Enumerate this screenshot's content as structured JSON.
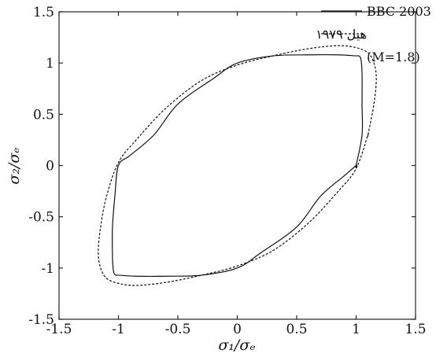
{
  "chart_data": {
    "type": "line",
    "title": "",
    "xlabel": "σ₁/σₑ",
    "ylabel": "σ₂/σₑ",
    "xlim": [
      -1.5,
      1.5
    ],
    "ylim": [
      -1.5,
      1.5
    ],
    "xticks": [
      "-1.5",
      "-1",
      "-0.5",
      "0",
      "0.5",
      "1",
      "1.5"
    ],
    "yticks": [
      "-1.5",
      "-1",
      "-0.5",
      "0",
      "0.5",
      "1",
      "1.5"
    ],
    "grid": false,
    "legend_position": "top-right",
    "legend_note": "(M=1.8)",
    "series": [
      {
        "name": "BBC 2003",
        "style": "solid",
        "color": "#111111",
        "x": [
          1.0,
          1.05,
          1.05,
          1.05,
          1.04,
          1.02,
          1.0,
          0.85,
          0.6,
          0.3,
          0.0,
          -0.2,
          -0.5,
          -0.7,
          -0.9,
          -1.0,
          -1.03,
          -1.05,
          -1.05,
          -1.04,
          -1.02,
          -1.0,
          -0.85,
          -0.6,
          -0.3,
          0.0,
          0.2,
          0.5,
          0.7,
          0.9,
          1.0
        ],
        "y": [
          0.0,
          0.3,
          0.6,
          0.9,
          1.04,
          1.07,
          1.07,
          1.08,
          1.08,
          1.07,
          1.0,
          0.85,
          0.6,
          0.3,
          0.1,
          0.0,
          -0.3,
          -0.6,
          -0.9,
          -1.04,
          -1.07,
          -1.07,
          -1.08,
          -1.08,
          -1.07,
          -1.0,
          -0.85,
          -0.6,
          -0.3,
          -0.1,
          0.0
        ]
      },
      {
        "name": "هیل ۱۹۷۹",
        "style": "dashed",
        "color": "#111111",
        "x": [
          1.1,
          1.15,
          1.17,
          1.15,
          1.1,
          1.0,
          0.85,
          0.6,
          0.3,
          0.0,
          -0.3,
          -0.6,
          -0.85,
          -1.0,
          -1.1,
          -1.15,
          -1.17,
          -1.15,
          -1.1,
          -1.0,
          -0.85,
          -0.6,
          -0.3,
          0.0,
          0.3,
          0.6,
          0.85,
          1.0,
          1.1
        ],
        "y": [
          0.3,
          0.6,
          0.85,
          1.0,
          1.1,
          1.15,
          1.17,
          1.14,
          1.07,
          0.98,
          0.83,
          0.56,
          0.25,
          0.03,
          -0.3,
          -0.6,
          -0.85,
          -1.0,
          -1.1,
          -1.15,
          -1.17,
          -1.14,
          -1.07,
          -0.98,
          -0.83,
          -0.56,
          -0.25,
          -0.03,
          0.3
        ]
      }
    ]
  }
}
